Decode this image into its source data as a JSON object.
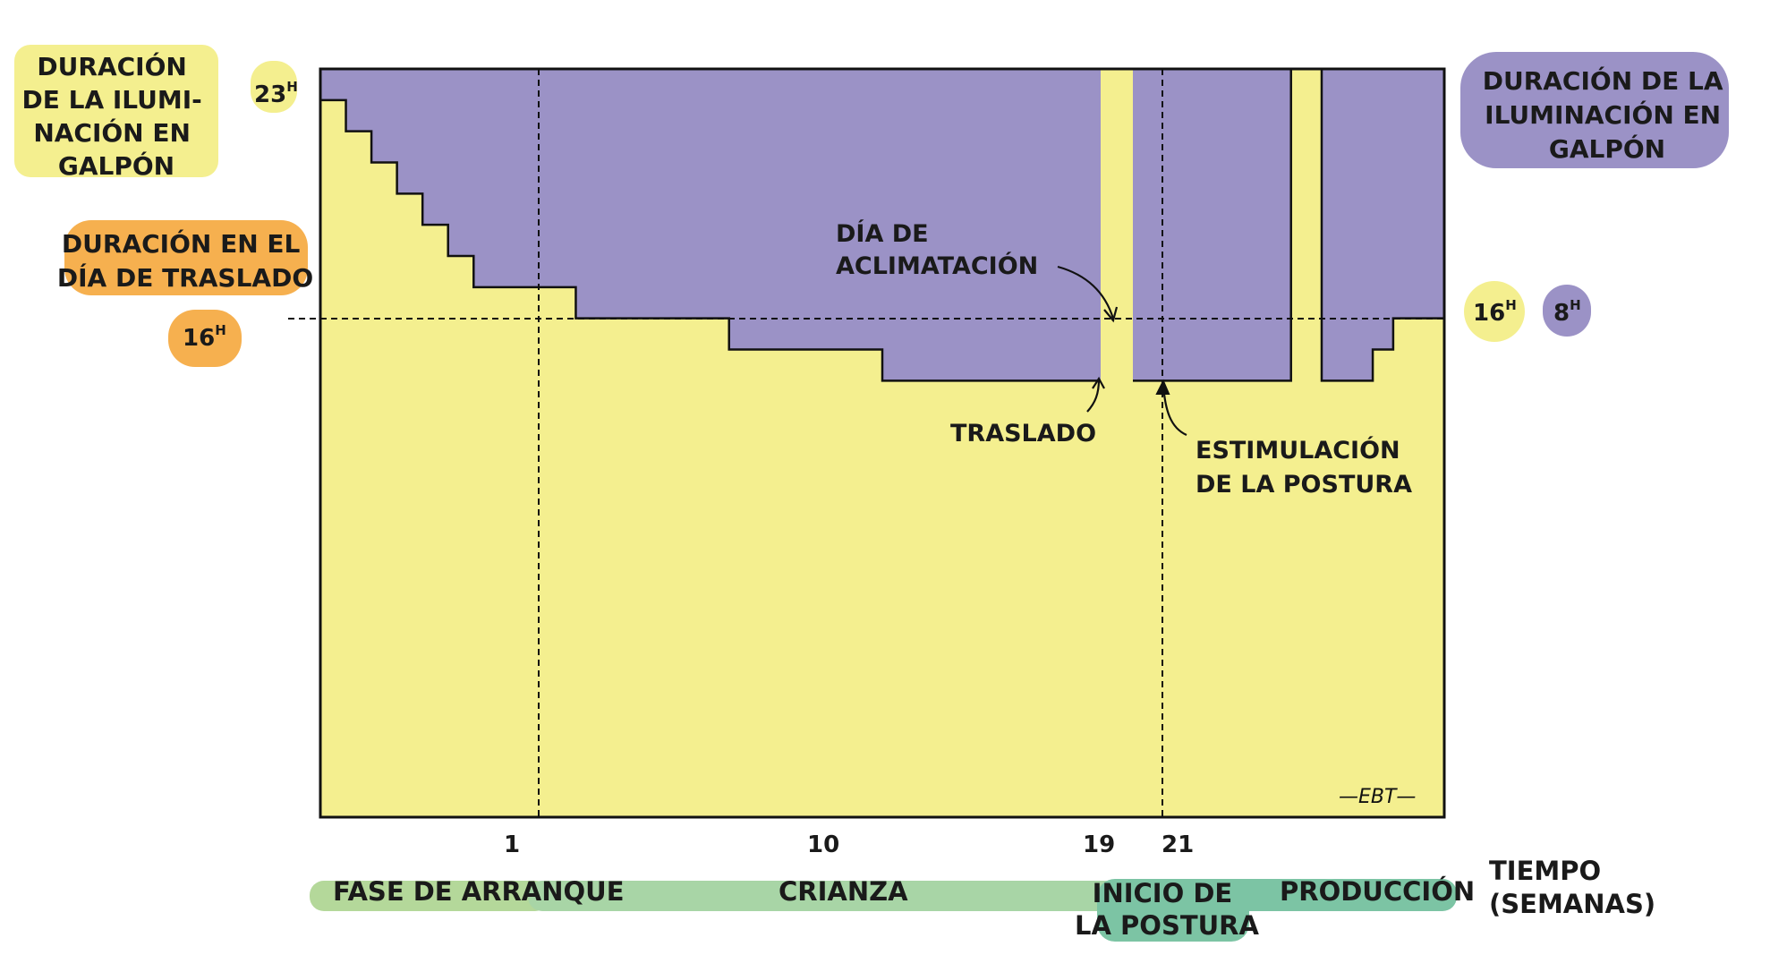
{
  "colors": {
    "light": "#f4ef8f",
    "dark": "#9b92c6",
    "orange": "#f6b04f",
    "green_light": "#b4d89a",
    "green_mid": "#a8d5a6",
    "green_dark": "#7cc4a4",
    "outline": "#111111"
  },
  "labels": {
    "left_yellow": [
      "DURACIÓN",
      "DE LA ILUMI-",
      "NACIÓN EN",
      "GALPÓN"
    ],
    "left_orange": [
      "DURACIÓN EN EL",
      "DÍA DE TRASLADO"
    ],
    "left_orange_value": "16",
    "left_orange_unit": "H",
    "top_value": "23",
    "top_unit": "H",
    "right_purple": [
      "DURACIÓN DE LA",
      "ILUMINACIÓN EN",
      "GALPÓN"
    ],
    "right_yellow_value": "16",
    "right_yellow_unit": "H",
    "right_purple_value": "8",
    "right_purple_unit": "H",
    "acclimation": [
      "DÍA DE",
      "ACLIMATACIÓN"
    ],
    "transfer": "TRASLADO",
    "stimulation": [
      "ESTIMULACIÓN",
      "DE LA POSTURA"
    ],
    "signature": "—EBT—",
    "time_axis": [
      "TIEMPO",
      "(SEMANAS)"
    ]
  },
  "phases": [
    {
      "label": "FASE DE ARRANQUE"
    },
    {
      "label": "CRIANZA"
    },
    {
      "label": "INICIO DE",
      "label2": "LA POSTURA"
    },
    {
      "label": "PRODUCCIÓN"
    }
  ],
  "chart_data": {
    "type": "area",
    "title": "",
    "xlabel": "TIEMPO (SEMANAS)",
    "ylabel": "DURACIÓN DE LA ILUMINACIÓN EN GALPÓN",
    "x_ticks": [
      "1",
      "10",
      "19",
      "21"
    ],
    "ylim": [
      0,
      24
    ],
    "y_reference": 16,
    "y_top_label": 23,
    "series": [
      {
        "name": "DURACIÓN DE LA ILUMINACIÓN EN GALPÓN",
        "x": [
          0,
          0.5,
          1,
          1.5,
          2,
          2.5,
          3,
          5,
          8,
          11,
          14,
          19,
          19.2,
          19.6,
          20.4,
          20.6,
          21,
          22
        ],
        "y": [
          23,
          22,
          21,
          20,
          19,
          18,
          17,
          16,
          15,
          14,
          14,
          24,
          24,
          14,
          14,
          15,
          16,
          16
        ]
      }
    ],
    "annotations": [
      "DÍA DE ACLIMATACIÓN",
      "TRASLADO",
      "ESTIMULACIÓN DE LA POSTURA"
    ],
    "grid": false
  }
}
